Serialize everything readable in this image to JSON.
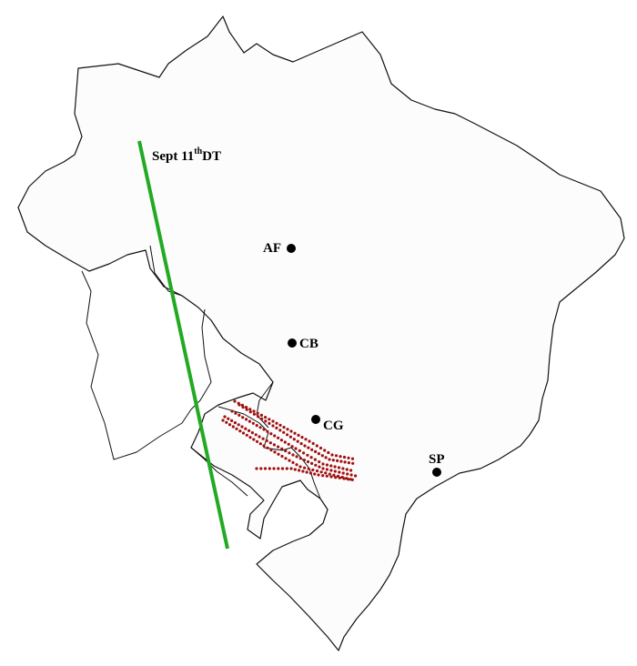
{
  "line_label": {
    "main": "Sept 11",
    "sup": "th",
    "suffix": "DT"
  },
  "cities": [
    {
      "code": "AF"
    },
    {
      "code": "CB"
    },
    {
      "code": "CG"
    },
    {
      "code": "SP"
    }
  ],
  "colors": {
    "track_line": "#22aa22",
    "trajectory_points": "#a01010",
    "city_marker": "#000000",
    "border": "#111111"
  }
}
